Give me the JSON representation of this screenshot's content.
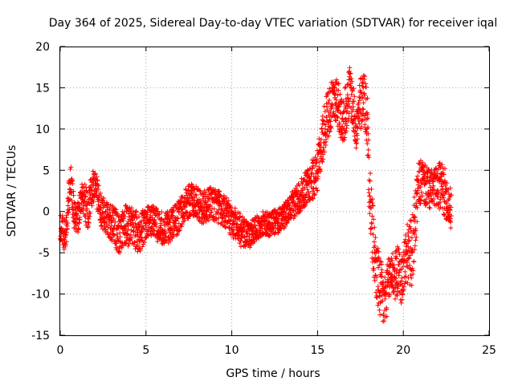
{
  "chart_data": {
    "type": "scatter",
    "title": "Day 364 of 2025, Sidereal Day-to-day VTEC variation (SDTVAR) for receiver iqal",
    "xlabel": "GPS time / hours",
    "ylabel": "SDTVAR / TECUs",
    "xlim": [
      0,
      25
    ],
    "ylim": [
      -15,
      20
    ],
    "x_ticks": [
      "0",
      "5",
      "10",
      "15",
      "20",
      "25"
    ],
    "y_ticks": [
      "-15",
      "-10",
      "-5",
      "0",
      "5",
      "10",
      "15",
      "20"
    ],
    "grid": true,
    "marker": "+",
    "color": "#ff0000",
    "trace": {
      "x": [
        0.0,
        0.2,
        0.4,
        0.6,
        0.8,
        1.0,
        1.3,
        1.6,
        1.9,
        2.1,
        2.4,
        2.8,
        3.2,
        3.5,
        3.8,
        4.2,
        4.6,
        5.0,
        5.4,
        5.8,
        6.3,
        6.8,
        7.3,
        7.8,
        8.3,
        8.8,
        9.3,
        9.8,
        10.2,
        10.6,
        11.0,
        11.4,
        11.8,
        12.3,
        12.8,
        13.3,
        13.8,
        14.2,
        14.6,
        15.0,
        15.3,
        15.6,
        15.9,
        16.1,
        16.3,
        16.5,
        16.7,
        16.9,
        17.1,
        17.3,
        17.5,
        17.7,
        17.9,
        18.1,
        18.3,
        18.5,
        18.7,
        18.9,
        19.1,
        19.3,
        19.5,
        19.7,
        19.9,
        20.1,
        20.3,
        20.5,
        20.7,
        20.9,
        21.1,
        21.3,
        21.6,
        21.9,
        22.2,
        22.5,
        22.8
      ],
      "y": [
        -1.5,
        -3,
        -1,
        4,
        0,
        -1,
        2,
        0,
        3,
        2,
        0,
        -1,
        -2,
        -3,
        -1.5,
        -2,
        -2.5,
        -1.5,
        -1,
        -2,
        -2,
        -1,
        1,
        1.5,
        0.5,
        1,
        0.5,
        -0.5,
        -1.5,
        -2.5,
        -3,
        -2,
        -1.5,
        -1.5,
        -1,
        0,
        1.5,
        2.5,
        3.5,
        5,
        9,
        12,
        13,
        14,
        12,
        11,
        13,
        15,
        12,
        10,
        13,
        14.5,
        11,
        0,
        -5,
        -8,
        -10,
        -11,
        -9,
        -7,
        -8,
        -7,
        -8.5,
        -6,
        -5,
        -5,
        -1,
        3,
        4,
        3,
        2.5,
        3,
        3,
        2,
        0
      ],
      "spread": [
        2,
        2,
        2.5,
        2,
        2,
        2,
        2,
        2.5,
        2,
        2.5,
        2,
        2,
        2.5,
        2.5,
        2.5,
        2.5,
        2.5,
        2,
        2,
        2,
        2,
        2,
        2,
        2,
        2,
        2,
        2,
        2,
        2,
        2,
        1.5,
        1.5,
        1.5,
        1.5,
        1.5,
        1.5,
        2,
        2,
        2.5,
        2.5,
        3,
        3,
        3,
        3,
        3,
        3,
        3,
        3,
        3,
        3,
        3.5,
        3,
        4,
        5,
        4,
        4,
        4,
        3.5,
        3,
        3,
        3,
        3,
        3,
        3.5,
        4,
        4,
        4,
        3,
        2.5,
        2.5,
        2.5,
        2.5,
        3,
        3,
        2.5
      ],
      "points_per_hour": 120,
      "range": [
        0.0,
        22.8
      ]
    }
  }
}
